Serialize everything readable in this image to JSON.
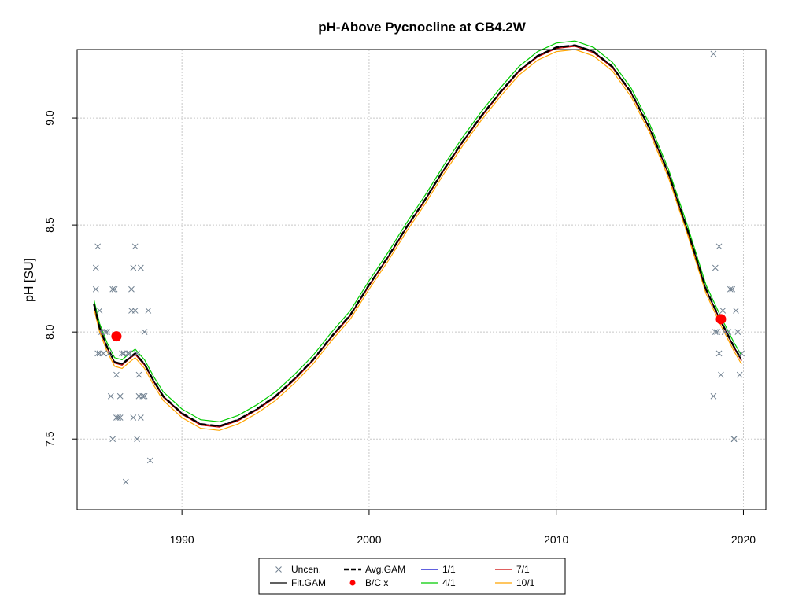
{
  "chart_data": {
    "type": "scatter",
    "title": "pH-Above Pycnocline at CB4.2W",
    "ylabel": "pH [SU]",
    "xlabel": "",
    "xlim": [
      1984.4,
      2021.2
    ],
    "ylim": [
      7.17,
      9.32
    ],
    "x_ticks": [
      1990,
      2000,
      2010,
      2020
    ],
    "y_ticks": [
      7.5,
      8.0,
      8.5,
      9.0
    ],
    "x_tick_labels": [
      "1990",
      "2000",
      "2010",
      "2020"
    ],
    "y_tick_labels": [
      "7.5",
      "8.0",
      "8.5",
      "9.0"
    ],
    "grid": true,
    "legend_position": "bottom",
    "observations": {
      "name": "Uncen.",
      "color": "#708090",
      "points": [
        [
          1985.4,
          8.3
        ],
        [
          1985.5,
          8.4
        ],
        [
          1985.4,
          8.2
        ],
        [
          1985.6,
          8.1
        ],
        [
          1985.5,
          7.9
        ],
        [
          1985.6,
          7.9
        ],
        [
          1985.7,
          8.0
        ],
        [
          1985.8,
          7.9
        ],
        [
          1985.9,
          8.0
        ],
        [
          1986.0,
          8.0
        ],
        [
          1986.1,
          7.9
        ],
        [
          1986.2,
          7.7
        ],
        [
          1986.3,
          8.2
        ],
        [
          1986.3,
          7.5
        ],
        [
          1986.4,
          8.2
        ],
        [
          1986.5,
          7.8
        ],
        [
          1986.5,
          7.6
        ],
        [
          1986.6,
          7.6
        ],
        [
          1986.7,
          7.7
        ],
        [
          1986.7,
          7.6
        ],
        [
          1986.8,
          7.9
        ],
        [
          1986.9,
          7.9
        ],
        [
          1987.0,
          7.3
        ],
        [
          1987.1,
          7.9
        ],
        [
          1987.2,
          7.9
        ],
        [
          1987.3,
          8.1
        ],
        [
          1987.3,
          8.2
        ],
        [
          1987.4,
          7.6
        ],
        [
          1987.4,
          8.3
        ],
        [
          1987.5,
          8.4
        ],
        [
          1987.5,
          8.1
        ],
        [
          1987.6,
          7.5
        ],
        [
          1987.6,
          7.9
        ],
        [
          1987.7,
          7.8
        ],
        [
          1987.7,
          7.7
        ],
        [
          1987.8,
          8.3
        ],
        [
          1987.8,
          7.6
        ],
        [
          1987.9,
          7.7
        ],
        [
          1988.0,
          7.7
        ],
        [
          1988.0,
          8.0
        ],
        [
          1988.2,
          8.1
        ],
        [
          1988.3,
          7.4
        ],
        [
          2018.4,
          9.3
        ],
        [
          2018.4,
          7.7
        ],
        [
          2018.5,
          8.0
        ],
        [
          2018.5,
          8.3
        ],
        [
          2018.6,
          8.0
        ],
        [
          2018.7,
          7.9
        ],
        [
          2018.7,
          8.4
        ],
        [
          2018.8,
          7.8
        ],
        [
          2018.9,
          8.1
        ],
        [
          2019.0,
          8.0
        ],
        [
          2019.2,
          8.0
        ],
        [
          2019.3,
          8.2
        ],
        [
          2019.4,
          8.2
        ],
        [
          2019.5,
          7.5
        ],
        [
          2019.5,
          7.5
        ],
        [
          2019.6,
          8.1
        ],
        [
          2019.7,
          8.0
        ],
        [
          2019.8,
          7.8
        ],
        [
          2019.9,
          7.9
        ]
      ]
    },
    "fit_gam": {
      "name": "Fit.GAM",
      "color": "#000000",
      "points": [
        [
          1985.3,
          8.13
        ],
        [
          1985.6,
          8.02
        ],
        [
          1986.0,
          7.93
        ],
        [
          1986.4,
          7.86
        ],
        [
          1986.8,
          7.85
        ],
        [
          1987.2,
          7.88
        ],
        [
          1987.5,
          7.9
        ],
        [
          1988.0,
          7.85
        ],
        [
          1988.5,
          7.77
        ],
        [
          1989.0,
          7.7
        ],
        [
          1990.0,
          7.62
        ],
        [
          1991.0,
          7.57
        ],
        [
          1992.0,
          7.56
        ],
        [
          1993.0,
          7.59
        ],
        [
          1994.0,
          7.64
        ],
        [
          1995.0,
          7.7
        ],
        [
          1996.0,
          7.78
        ],
        [
          1997.0,
          7.87
        ],
        [
          1998.0,
          7.98
        ],
        [
          1999.0,
          8.08
        ],
        [
          2000.0,
          8.22
        ],
        [
          2001.0,
          8.35
        ],
        [
          2002.0,
          8.49
        ],
        [
          2003.0,
          8.62
        ],
        [
          2004.0,
          8.76
        ],
        [
          2005.0,
          8.89
        ],
        [
          2006.0,
          9.01
        ],
        [
          2007.0,
          9.12
        ],
        [
          2008.0,
          9.22
        ],
        [
          2009.0,
          9.29
        ],
        [
          2010.0,
          9.33
        ],
        [
          2011.0,
          9.34
        ],
        [
          2012.0,
          9.31
        ],
        [
          2013.0,
          9.24
        ],
        [
          2014.0,
          9.12
        ],
        [
          2015.0,
          8.95
        ],
        [
          2016.0,
          8.74
        ],
        [
          2017.0,
          8.48
        ],
        [
          2018.0,
          8.2
        ],
        [
          2018.8,
          8.05
        ],
        [
          2019.5,
          7.93
        ],
        [
          2019.9,
          7.87
        ]
      ]
    },
    "avg_gam": {
      "name": "Avg.GAM",
      "color": "#000000",
      "offset": 0.0
    },
    "bc_points": {
      "name": "B/C x",
      "color": "#ff0000",
      "points": [
        [
          1986.5,
          7.98
        ],
        [
          2018.8,
          8.06
        ]
      ]
    },
    "series": [
      {
        "name": "1/1",
        "color": "#0000cc",
        "offset": 0.0
      },
      {
        "name": "4/1",
        "color": "#00cc00",
        "offset": 0.02
      },
      {
        "name": "7/1",
        "color": "#cc0000",
        "offset": -0.005
      },
      {
        "name": "10/1",
        "color": "#ffa500",
        "offset": -0.02
      }
    ],
    "legend": [
      {
        "label": "Uncen.",
        "kind": "cross",
        "color": "#708090"
      },
      {
        "label": "Fit.GAM",
        "kind": "line",
        "color": "#000000"
      },
      {
        "label": "Avg.GAM",
        "kind": "dash",
        "color": "#000000"
      },
      {
        "label": "B/C x",
        "kind": "dot",
        "color": "#ff0000"
      },
      {
        "label": "1/1",
        "kind": "line",
        "color": "#0000cc"
      },
      {
        "label": "4/1",
        "kind": "line",
        "color": "#00cc00"
      },
      {
        "label": "7/1",
        "kind": "line",
        "color": "#cc0000"
      },
      {
        "label": "10/1",
        "kind": "line",
        "color": "#ffa500"
      }
    ]
  }
}
